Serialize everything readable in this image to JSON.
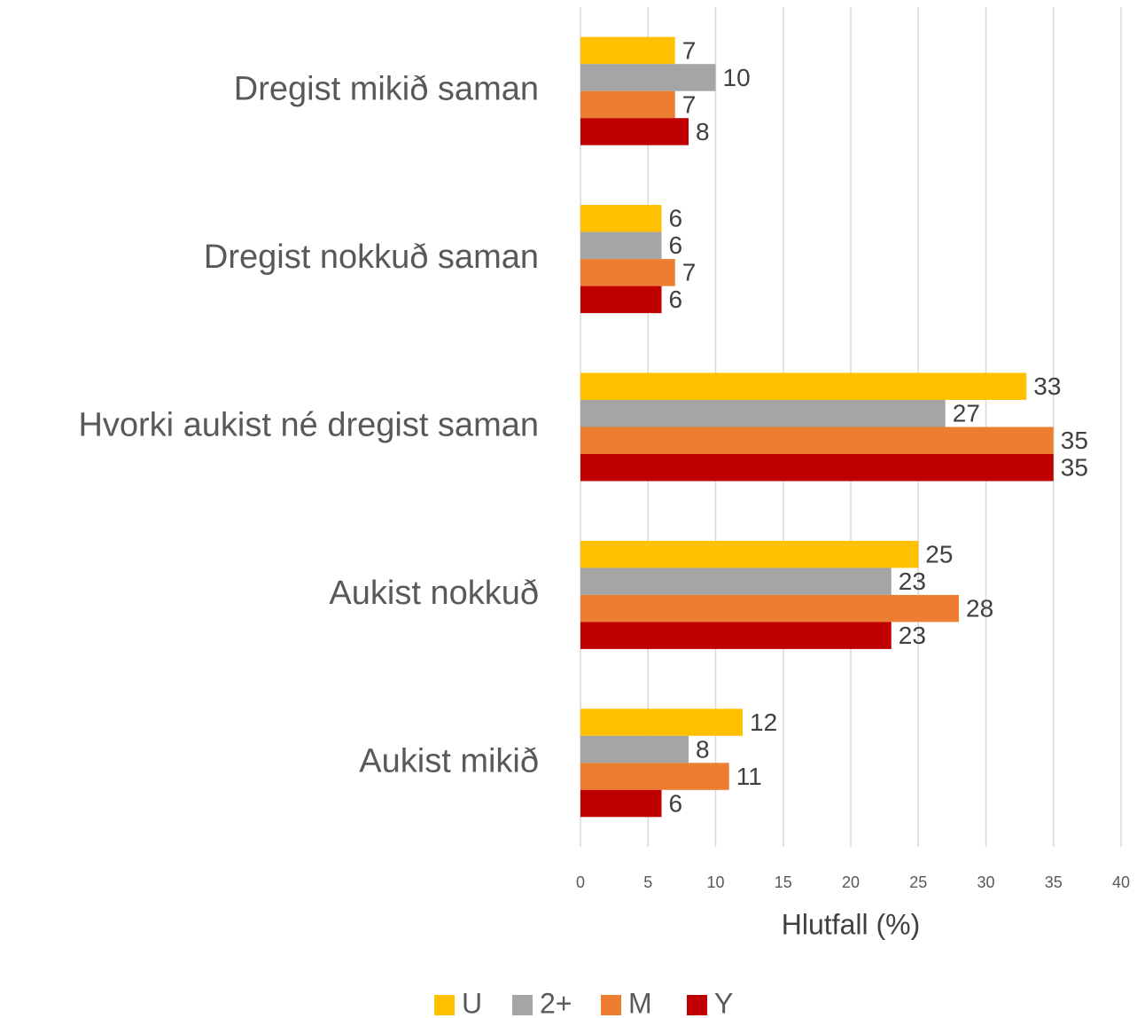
{
  "chart_data": {
    "type": "bar",
    "orientation": "horizontal",
    "categories": [
      "Dregist mikið saman",
      "Dregist nokkuð saman",
      "Hvorki aukist né dregist saman",
      "Aukist nokkuð",
      "Aukist mikið"
    ],
    "series": [
      {
        "name": "U",
        "color": "#ffc000",
        "values": [
          7,
          6,
          33,
          25,
          12
        ]
      },
      {
        "name": "2+",
        "color": "#a5a5a5",
        "values": [
          10,
          6,
          27,
          23,
          8
        ]
      },
      {
        "name": "M",
        "color": "#ed7d31",
        "values": [
          7,
          7,
          35,
          28,
          11
        ]
      },
      {
        "name": "Y",
        "color": "#c00000",
        "values": [
          8,
          6,
          35,
          23,
          6
        ]
      }
    ],
    "xlabel": "Hlutfall (%)",
    "xlim": [
      0,
      40
    ],
    "xticks": [
      0,
      5,
      10,
      15,
      20,
      25,
      30,
      35,
      40
    ],
    "grid": true,
    "legend": "bottom"
  }
}
